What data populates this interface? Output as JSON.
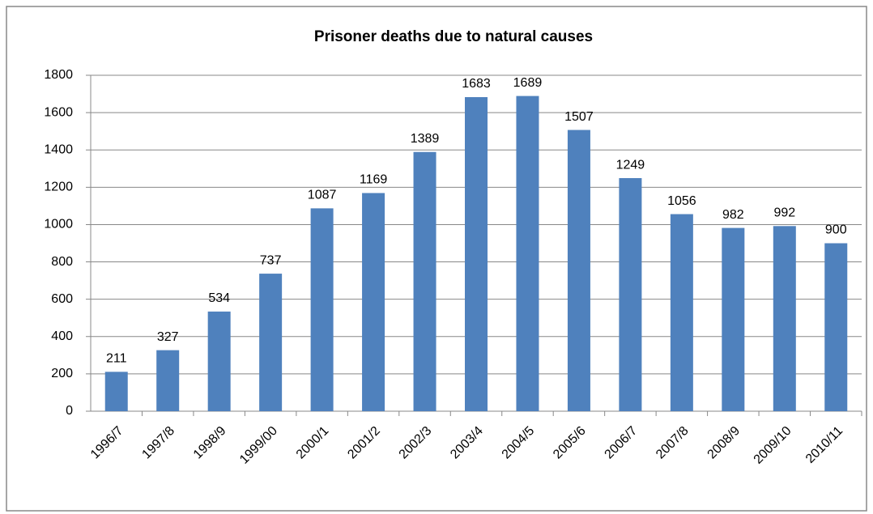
{
  "chart_data": {
    "type": "bar",
    "title": "Prisoner deaths due to natural causes",
    "categories": [
      "1996/7",
      "1997/8",
      "1998/9",
      "1999/00",
      "2000/1",
      "2001/2",
      "2002/3",
      "2003/4",
      "2004/5",
      "2005/6",
      "2006/7",
      "2007/8",
      "2008/9",
      "2009/10",
      "2010/11"
    ],
    "values": [
      211,
      327,
      534,
      737,
      1087,
      1169,
      1389,
      1683,
      1689,
      1507,
      1249,
      1056,
      982,
      992,
      900
    ],
    "color": "#4f81bd",
    "ylim": [
      0,
      1800
    ],
    "yticks": [
      0,
      200,
      400,
      600,
      800,
      1000,
      1200,
      1400,
      1600,
      1800
    ],
    "grid": true
  }
}
